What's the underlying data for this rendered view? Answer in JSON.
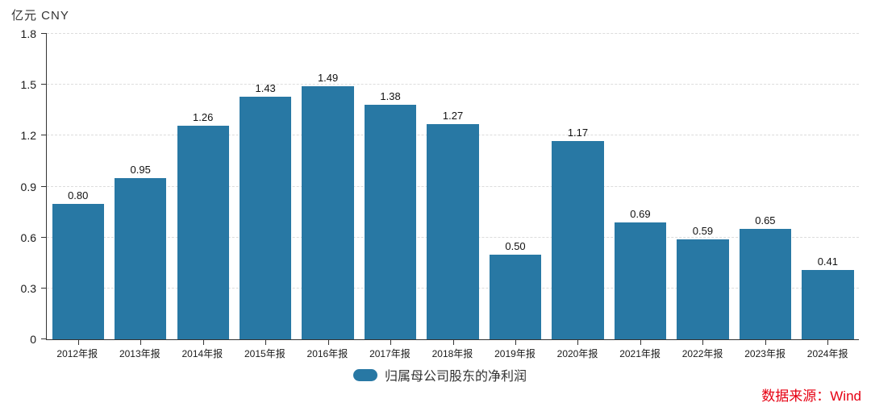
{
  "unit_label": "亿元 CNY",
  "colors": {
    "bar": "#2878a4",
    "grid": "#dcdcdc",
    "axis": "#333333",
    "text": "#1a1a1a",
    "source": "#e60012"
  },
  "legend": {
    "label": "归属母公司股东的净利润"
  },
  "source_note": "数据来源：Wind",
  "chart_data": {
    "type": "bar",
    "title": "",
    "series_name": "归属母公司股东的净利润",
    "unit": "亿元 CNY",
    "categories": [
      "2012年报",
      "2013年报",
      "2014年报",
      "2015年报",
      "2016年报",
      "2017年报",
      "2018年报",
      "2019年报",
      "2020年报",
      "2021年报",
      "2022年报",
      "2023年报",
      "2024年报"
    ],
    "values": [
      0.8,
      0.95,
      1.26,
      1.43,
      1.49,
      1.38,
      1.27,
      0.5,
      1.17,
      0.69,
      0.59,
      0.65,
      0.41
    ],
    "value_labels": [
      "0.80",
      "0.95",
      "1.26",
      "1.43",
      "1.49",
      "1.38",
      "1.27",
      "0.50",
      "1.17",
      "0.69",
      "0.59",
      "0.65",
      "0.41"
    ],
    "xlabel": "",
    "ylabel": "亿元 CNY",
    "ylim": [
      0,
      1.8
    ],
    "yticks": [
      0,
      0.3,
      0.6,
      0.9,
      1.2,
      1.5,
      1.8
    ],
    "ytick_labels": [
      "0",
      "0.3",
      "0.6",
      "0.9",
      "1.2",
      "1.5",
      "1.8"
    ],
    "grid": true,
    "grid_style": "dashed",
    "legend_position": "bottom",
    "value_labels_shown": true
  }
}
